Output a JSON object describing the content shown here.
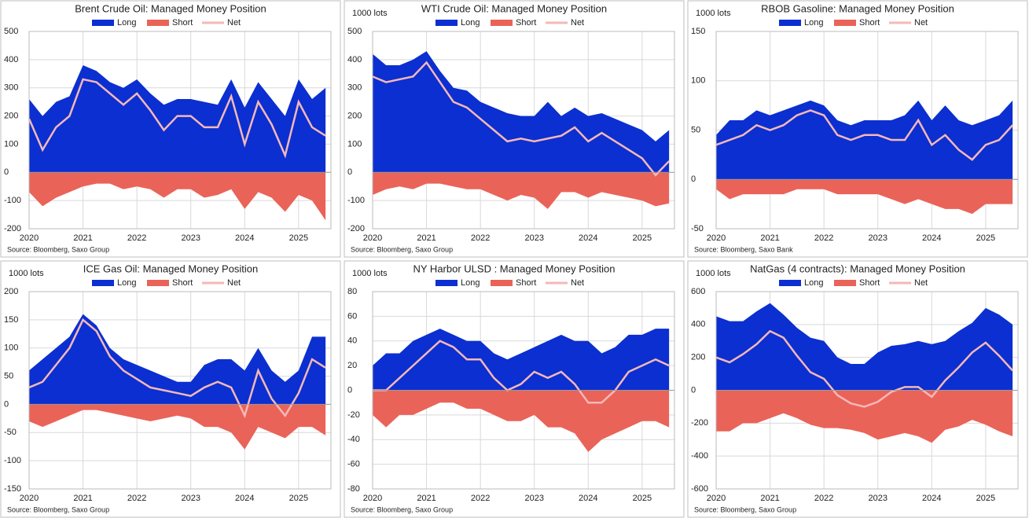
{
  "chart_data": [
    {
      "type": "area",
      "title": "Brent Crude Oil: Managed Money Position",
      "source": "Source:  Bloomberg,  Saxo Group",
      "x": [
        2020,
        2020.25,
        2020.5,
        2020.75,
        2021,
        2021.25,
        2021.5,
        2021.75,
        2022,
        2022.25,
        2022.5,
        2022.75,
        2023,
        2023.25,
        2023.5,
        2023.75,
        2024,
        2024.25,
        2024.5,
        2024.75,
        2025,
        2025.25,
        2025.5
      ],
      "xlim": [
        2020,
        2025.6
      ],
      "xticks": [
        2020,
        2021,
        2022,
        2023,
        2024,
        2025
      ],
      "ylim": [
        -200,
        500
      ],
      "yticks": [
        -200,
        -100,
        0,
        100,
        200,
        300,
        400,
        500
      ],
      "grid": true,
      "series": [
        {
          "name": "Long",
          "color": "#0b2fd0",
          "values": [
            260,
            200,
            250,
            270,
            380,
            360,
            320,
            300,
            330,
            280,
            240,
            260,
            260,
            250,
            240,
            330,
            230,
            320,
            260,
            200,
            330,
            260,
            300
          ]
        },
        {
          "name": "Short",
          "color": "#ea6358",
          "values": [
            -70,
            -120,
            -90,
            -70,
            -50,
            -40,
            -40,
            -60,
            -50,
            -60,
            -90,
            -60,
            -60,
            -90,
            -80,
            -60,
            -130,
            -70,
            -90,
            -140,
            -80,
            -100,
            -170
          ]
        },
        {
          "name": "Net",
          "color": "#f4b8b8",
          "line": true,
          "values": [
            190,
            80,
            160,
            200,
            330,
            320,
            280,
            240,
            280,
            220,
            150,
            200,
            200,
            160,
            160,
            270,
            100,
            250,
            170,
            60,
            250,
            160,
            130
          ]
        }
      ]
    },
    {
      "type": "area",
      "title": "WTI Crude Oil: Managed Money Position",
      "unit": "1000 lots",
      "source": "Source:  Bloomberg,  Saxo Group",
      "x": [
        2020,
        2020.25,
        2020.5,
        2020.75,
        2021,
        2021.25,
        2021.5,
        2021.75,
        2022,
        2022.25,
        2022.5,
        2022.75,
        2023,
        2023.25,
        2023.5,
        2023.75,
        2024,
        2024.25,
        2024.5,
        2024.75,
        2025,
        2025.25,
        2025.5
      ],
      "xlim": [
        2020,
        2025.6
      ],
      "xticks": [
        2020,
        2021,
        2022,
        2023,
        2024,
        2025
      ],
      "ylim": [
        -200,
        500
      ],
      "yticks": [
        -200,
        -100,
        0,
        100,
        200,
        300,
        400,
        500
      ],
      "grid": true,
      "series": [
        {
          "name": "Long",
          "color": "#0b2fd0",
          "values": [
            420,
            380,
            380,
            400,
            430,
            360,
            300,
            290,
            250,
            230,
            210,
            200,
            200,
            250,
            200,
            230,
            200,
            210,
            190,
            170,
            150,
            110,
            150
          ]
        },
        {
          "name": "Short",
          "color": "#ea6358",
          "values": [
            -80,
            -60,
            -50,
            -60,
            -40,
            -40,
            -50,
            -60,
            -60,
            -80,
            -100,
            -80,
            -90,
            -130,
            -70,
            -70,
            -90,
            -70,
            -80,
            -90,
            -100,
            -120,
            -110
          ]
        },
        {
          "name": "Net",
          "color": "#f4b8b8",
          "line": true,
          "values": [
            340,
            320,
            330,
            340,
            390,
            320,
            250,
            230,
            190,
            150,
            110,
            120,
            110,
            120,
            130,
            160,
            110,
            140,
            110,
            80,
            50,
            -10,
            40
          ]
        }
      ]
    },
    {
      "type": "area",
      "title": "RBOB Gasoline: Managed Money Position",
      "unit": "1000 lots",
      "source": "Source:  Bloomberg,  Saxo Bank",
      "x": [
        2020,
        2020.25,
        2020.5,
        2020.75,
        2021,
        2021.25,
        2021.5,
        2021.75,
        2022,
        2022.25,
        2022.5,
        2022.75,
        2023,
        2023.25,
        2023.5,
        2023.75,
        2024,
        2024.25,
        2024.5,
        2024.75,
        2025,
        2025.25,
        2025.5
      ],
      "xlim": [
        2020,
        2025.6
      ],
      "xticks": [
        2020,
        2021,
        2022,
        2023,
        2024,
        2025
      ],
      "ylim": [
        -50,
        150
      ],
      "yticks": [
        -50,
        0,
        50,
        100,
        150
      ],
      "grid": true,
      "series": [
        {
          "name": "Long",
          "color": "#0b2fd0",
          "values": [
            45,
            60,
            60,
            70,
            65,
            70,
            75,
            80,
            75,
            60,
            55,
            60,
            60,
            60,
            65,
            80,
            60,
            75,
            60,
            55,
            60,
            65,
            80
          ]
        },
        {
          "name": "Short",
          "color": "#ea6358",
          "values": [
            -10,
            -20,
            -15,
            -15,
            -15,
            -15,
            -10,
            -10,
            -10,
            -15,
            -15,
            -15,
            -15,
            -20,
            -25,
            -20,
            -25,
            -30,
            -30,
            -35,
            -25,
            -25,
            -25
          ]
        },
        {
          "name": "Net",
          "color": "#f4b8b8",
          "line": true,
          "values": [
            35,
            40,
            45,
            55,
            50,
            55,
            65,
            70,
            65,
            45,
            40,
            45,
            45,
            40,
            40,
            60,
            35,
            45,
            30,
            20,
            35,
            40,
            55
          ]
        }
      ]
    },
    {
      "type": "area",
      "title": "ICE Gas Oil: Managed Money Position",
      "unit": "1000 lots",
      "source": "Source:  Bloomberg,  Saxo Group",
      "x": [
        2020,
        2020.25,
        2020.5,
        2020.75,
        2021,
        2021.25,
        2021.5,
        2021.75,
        2022,
        2022.25,
        2022.5,
        2022.75,
        2023,
        2023.25,
        2023.5,
        2023.75,
        2024,
        2024.25,
        2024.5,
        2024.75,
        2025,
        2025.25,
        2025.5
      ],
      "xlim": [
        2020,
        2025.6
      ],
      "xticks": [
        2020,
        2021,
        2022,
        2023,
        2024,
        2025
      ],
      "ylim": [
        -150,
        200
      ],
      "yticks": [
        -150,
        -100,
        -50,
        0,
        50,
        100,
        150,
        200
      ],
      "grid": true,
      "series": [
        {
          "name": "Long",
          "color": "#0b2fd0",
          "values": [
            60,
            80,
            100,
            120,
            160,
            140,
            100,
            80,
            70,
            60,
            50,
            40,
            40,
            70,
            80,
            80,
            60,
            100,
            60,
            40,
            60,
            120,
            120
          ]
        },
        {
          "name": "Short",
          "color": "#ea6358",
          "values": [
            -30,
            -40,
            -30,
            -20,
            -10,
            -10,
            -15,
            -20,
            -25,
            -30,
            -25,
            -20,
            -25,
            -40,
            -40,
            -50,
            -80,
            -40,
            -50,
            -60,
            -40,
            -40,
            -55
          ]
        },
        {
          "name": "Net",
          "color": "#f4b8b8",
          "line": true,
          "values": [
            30,
            40,
            70,
            100,
            150,
            130,
            85,
            60,
            45,
            30,
            25,
            20,
            15,
            30,
            40,
            30,
            -20,
            60,
            10,
            -20,
            20,
            80,
            65
          ]
        }
      ]
    },
    {
      "type": "area",
      "title": "NY Harbor ULSD : Managed Money Position",
      "unit": "1000 lots",
      "source": "Source:  Bloomberg,  Saxo Group",
      "x": [
        2020,
        2020.25,
        2020.5,
        2020.75,
        2021,
        2021.25,
        2021.5,
        2021.75,
        2022,
        2022.25,
        2022.5,
        2022.75,
        2023,
        2023.25,
        2023.5,
        2023.75,
        2024,
        2024.25,
        2024.5,
        2024.75,
        2025,
        2025.25,
        2025.5
      ],
      "xlim": [
        2020,
        2025.6
      ],
      "xticks": [
        2020,
        2021,
        2022,
        2023,
        2024,
        2025
      ],
      "ylim": [
        -80,
        80
      ],
      "yticks": [
        -80,
        -60,
        -40,
        -20,
        0,
        20,
        40,
        60,
        80
      ],
      "grid": true,
      "series": [
        {
          "name": "Long",
          "color": "#0b2fd0",
          "values": [
            20,
            30,
            30,
            40,
            45,
            50,
            45,
            40,
            40,
            30,
            25,
            30,
            35,
            40,
            45,
            40,
            40,
            30,
            35,
            45,
            45,
            50,
            50
          ]
        },
        {
          "name": "Short",
          "color": "#ea6358",
          "values": [
            -20,
            -30,
            -20,
            -20,
            -15,
            -10,
            -10,
            -15,
            -15,
            -20,
            -25,
            -25,
            -20,
            -30,
            -30,
            -35,
            -50,
            -40,
            -35,
            -30,
            -25,
            -25,
            -30
          ]
        },
        {
          "name": "Net",
          "color": "#f4b8b8",
          "line": true,
          "values": [
            0,
            0,
            10,
            20,
            30,
            40,
            35,
            25,
            25,
            10,
            0,
            5,
            15,
            10,
            15,
            5,
            -10,
            -10,
            0,
            15,
            20,
            25,
            20
          ]
        }
      ]
    },
    {
      "type": "area",
      "title": "NatGas (4 contracts): Managed Money Position",
      "unit": "1000 lots",
      "source": "Source:  Bloomberg,  Saxo Group",
      "x": [
        2020,
        2020.25,
        2020.5,
        2020.75,
        2021,
        2021.25,
        2021.5,
        2021.75,
        2022,
        2022.25,
        2022.5,
        2022.75,
        2023,
        2023.25,
        2023.5,
        2023.75,
        2024,
        2024.25,
        2024.5,
        2024.75,
        2025,
        2025.25,
        2025.5
      ],
      "xlim": [
        2020,
        2025.6
      ],
      "xticks": [
        2020,
        2021,
        2022,
        2023,
        2024,
        2025
      ],
      "ylim": [
        -600,
        600
      ],
      "yticks": [
        -600,
        -400,
        -200,
        0,
        200,
        400,
        600
      ],
      "grid": true,
      "series": [
        {
          "name": "Long",
          "color": "#0b2fd0",
          "values": [
            450,
            420,
            420,
            480,
            530,
            460,
            380,
            320,
            300,
            200,
            160,
            160,
            230,
            270,
            280,
            300,
            280,
            300,
            360,
            410,
            500,
            460,
            400
          ]
        },
        {
          "name": "Short",
          "color": "#ea6358",
          "values": [
            -250,
            -250,
            -200,
            -200,
            -170,
            -140,
            -170,
            -210,
            -230,
            -230,
            -240,
            -260,
            -300,
            -280,
            -260,
            -280,
            -320,
            -240,
            -220,
            -180,
            -210,
            -250,
            -280
          ]
        },
        {
          "name": "Net",
          "color": "#f4b8b8",
          "line": true,
          "values": [
            200,
            170,
            220,
            280,
            360,
            320,
            210,
            110,
            70,
            -30,
            -80,
            -100,
            -70,
            -10,
            20,
            20,
            -40,
            60,
            140,
            230,
            290,
            210,
            120
          ]
        }
      ]
    }
  ]
}
